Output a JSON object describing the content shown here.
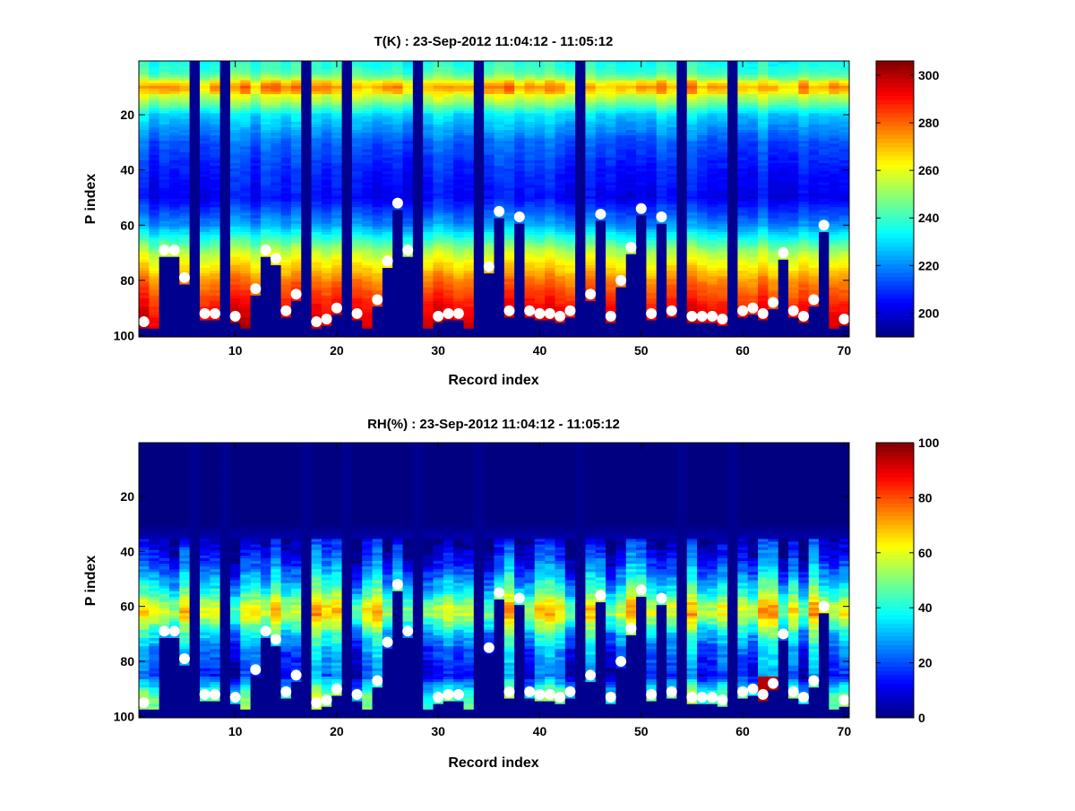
{
  "chart_data": [
    {
      "type": "heatmap",
      "title": "T(K) : 23-Sep-2012 11:04:12 - 11:05:12",
      "xlabel": "Record index",
      "ylabel": "P index",
      "xlim": [
        1,
        70
      ],
      "ylim": [
        1,
        100
      ],
      "y_reversed": true,
      "xticks": [
        "10",
        "20",
        "30",
        "40",
        "50",
        "60",
        "70"
      ],
      "yticks": [
        "20",
        "40",
        "60",
        "80",
        "100"
      ],
      "colormap": "jet",
      "clim": [
        190,
        306
      ],
      "colorbar_ticks": [
        "200",
        "220",
        "240",
        "260",
        "280",
        "300"
      ],
      "profile_levels": [
        1,
        5,
        10,
        15,
        20,
        30,
        40,
        50,
        60,
        70,
        80,
        90,
        100
      ],
      "profile_values": [
        236,
        242,
        268,
        252,
        230,
        215,
        208,
        204,
        222,
        255,
        277,
        291,
        300
      ]
    },
    {
      "type": "heatmap",
      "title": "RH(%) : 23-Sep-2012 11:04:12 - 11:05:12",
      "xlabel": "Record index",
      "ylabel": "P index",
      "xlim": [
        1,
        70
      ],
      "ylim": [
        1,
        100
      ],
      "y_reversed": true,
      "xticks": [
        "10",
        "20",
        "30",
        "40",
        "50",
        "60",
        "70"
      ],
      "yticks": [
        "20",
        "40",
        "60",
        "80",
        "100"
      ],
      "colormap": "jet",
      "clim": [
        0,
        100
      ],
      "colorbar_ticks": [
        "0",
        "20",
        "40",
        "60",
        "80",
        "100"
      ],
      "profile_levels": [
        1,
        30,
        36,
        45,
        55,
        60,
        63,
        70,
        75,
        85,
        92,
        100
      ],
      "profile_values": [
        0,
        0,
        5,
        18,
        40,
        58,
        60,
        35,
        25,
        15,
        45,
        50
      ]
    }
  ],
  "records": {
    "missing": [
      6,
      9,
      17,
      21,
      28,
      34,
      44,
      54,
      59
    ],
    "surface_index_markers": {
      "1": 95,
      "3": 69,
      "4": 69,
      "5": 79,
      "7": 92,
      "8": 92,
      "10": 93,
      "12": 83,
      "13": 69,
      "14": 72,
      "15": 91,
      "16": 85,
      "18": 95,
      "19": 94,
      "20": 90,
      "22": 92,
      "24": 87,
      "25": 73,
      "26": 52,
      "27": 69,
      "30": 93,
      "31": 92,
      "32": 92,
      "35": 75,
      "36": 55,
      "37": 91,
      "38": 57,
      "39": 91,
      "40": 92,
      "41": 92,
      "42": 93,
      "43": 91,
      "45": 85,
      "46": 56,
      "47": 93,
      "48": 80,
      "49": 68,
      "50": 54,
      "51": 92,
      "52": 57,
      "53": 91,
      "55": 93,
      "56": 93,
      "57": 93,
      "58": 94,
      "60": 91,
      "61": 90,
      "62": 92,
      "63": 88,
      "64": 70,
      "65": 91,
      "66": 93,
      "67": 87,
      "68": 60,
      "70": 94
    },
    "default_bottom_index": 97
  },
  "colors": {
    "missing": "#00008f",
    "marker": "#ffffff"
  }
}
